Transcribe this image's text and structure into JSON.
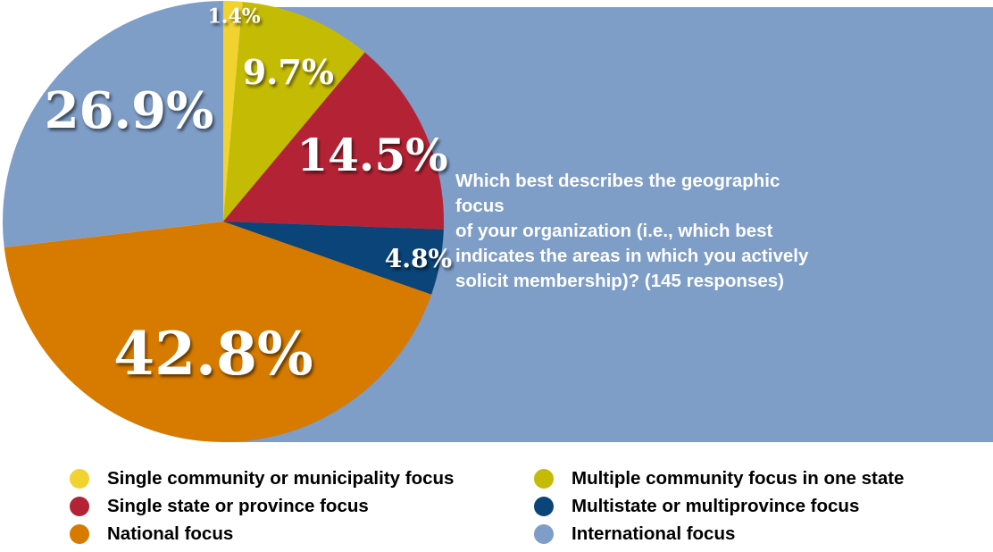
{
  "chart_data": {
    "type": "pie",
    "title": "Which best describes the geographic focus of your organization (i.e., which best indicates the areas in which you actively solicit membership)? (145 responses)",
    "title_lines": [
      "Which best describes the geographic focus",
      "of your organization (i.e., which best",
      "indicates the areas in which you actively",
      "solicit membership)? (145 responses)"
    ],
    "legend_placement": "bottom",
    "slices": [
      {
        "name": "Single community or municipality focus",
        "value": 1.4,
        "label": "1.4%",
        "color": "#f1d22f"
      },
      {
        "name": "Multiple community focus in one state",
        "value": 9.7,
        "label": "9.7%",
        "color": "#c4bb05"
      },
      {
        "name": "Single state or province focus",
        "value": 14.5,
        "label": "14.5%",
        "color": "#b42335"
      },
      {
        "name": "Multistate or multiprovince focus",
        "value": 4.8,
        "label": "4.8%",
        "color": "#0a4478"
      },
      {
        "name": "National focus",
        "value": 42.8,
        "label": "42.8%",
        "color": "#d67a00"
      },
      {
        "name": "International focus",
        "value": 26.9,
        "label": "26.9%",
        "color": "#7e9dc7"
      }
    ]
  },
  "legend": [
    {
      "label": "Single community or municipality focus",
      "color": "#f1d22f"
    },
    {
      "label": "Multiple community focus in one state",
      "color": "#c4bb05"
    },
    {
      "label": "Single state or province focus",
      "color": "#b42335"
    },
    {
      "label": "Multistate or multiprovince focus",
      "color": "#0a4478"
    },
    {
      "label": "National focus",
      "color": "#d67a00"
    },
    {
      "label": "International focus",
      "color": "#7e9dc7"
    }
  ]
}
